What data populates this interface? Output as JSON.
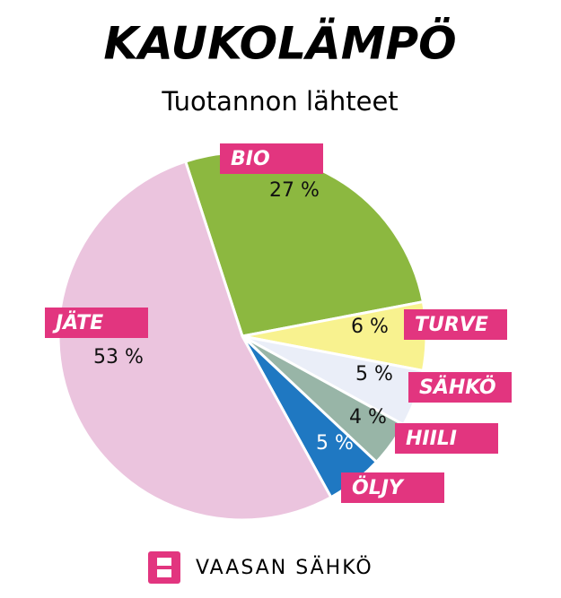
{
  "chart_data": {
    "type": "pie",
    "title": "KAUKOLÄMPÖ",
    "subtitle": "Tuotannon lähteet",
    "categories": [
      "BIO",
      "TURVE",
      "SÄHKÖ",
      "HIILI",
      "ÖLJY",
      "JÄTE"
    ],
    "values": [
      27,
      6,
      5,
      4,
      5,
      53
    ],
    "value_labels": [
      "27 %",
      "6 %",
      "5 %",
      "4 %",
      "5 %",
      "53 %"
    ],
    "colors": [
      "#8cb840",
      "#f8f28f",
      "#eaeef8",
      "#98b5a7",
      "#1f78c2",
      "#ebc4de"
    ]
  },
  "brand": "VAASAN SÄHKÖ"
}
